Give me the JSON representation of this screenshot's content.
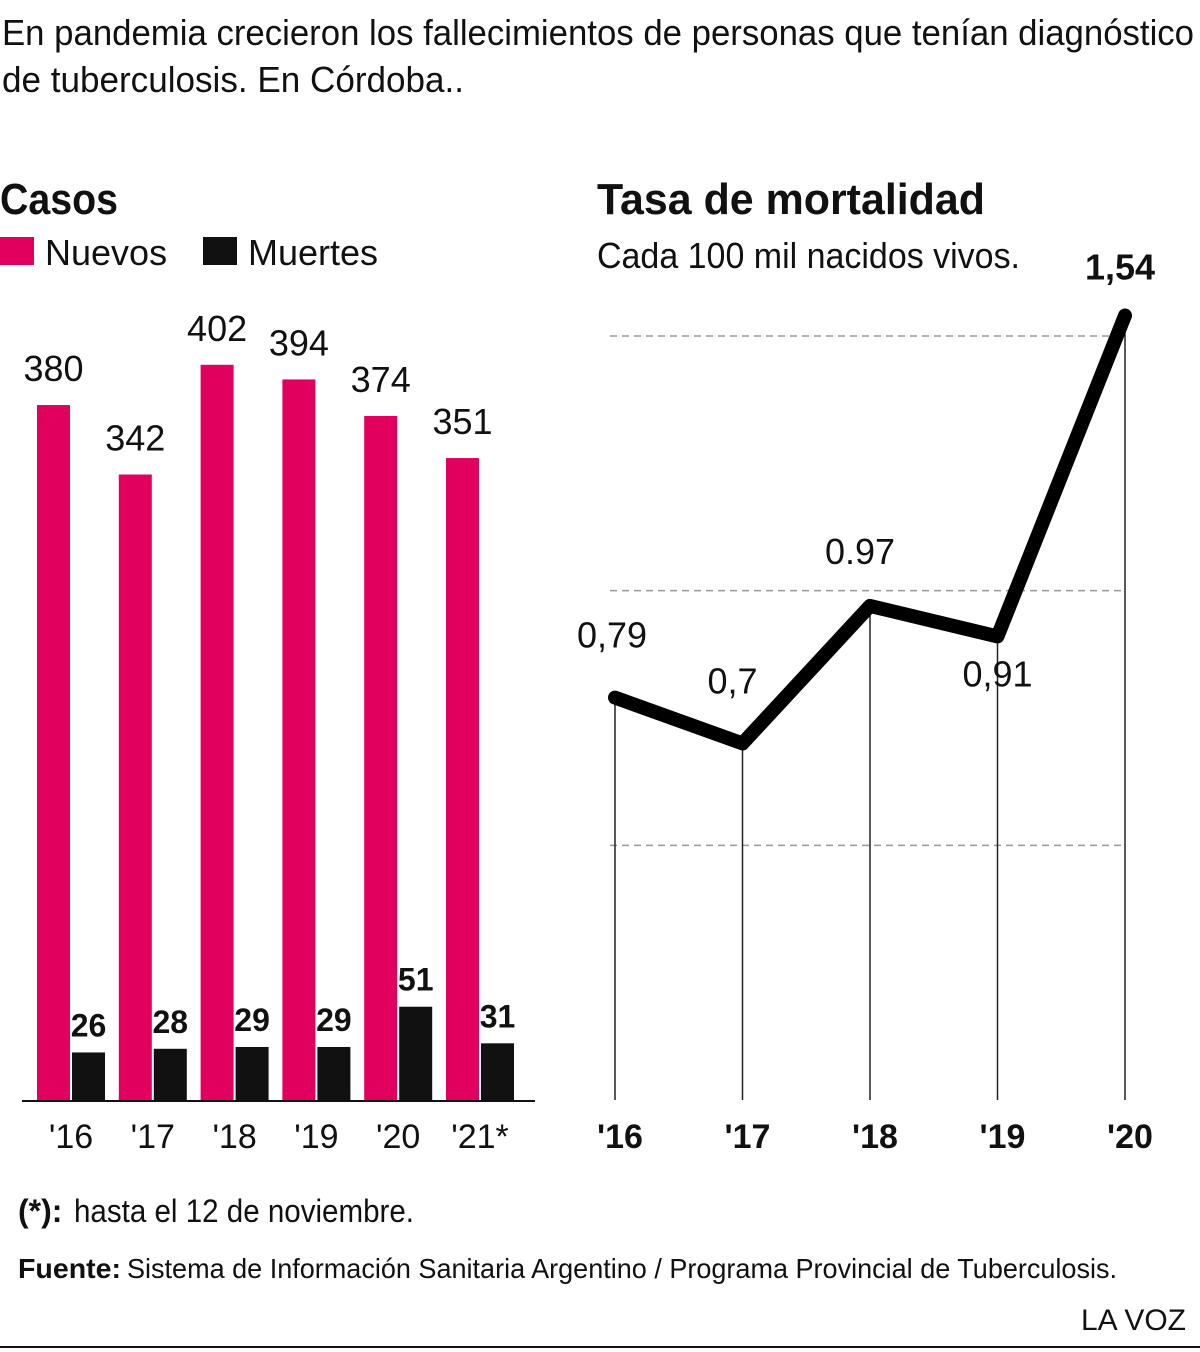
{
  "header": {
    "title": [
      "En pandemia crecieron los fallecimientos de personas que tenían diagnóstico",
      "de tuberculosis. En Córdoba.."
    ]
  },
  "chart_data": [
    {
      "type": "bar",
      "title": "Casos",
      "categories": [
        "'16",
        "'17",
        "'18",
        "'19",
        "'20",
        "'21*"
      ],
      "series": [
        {
          "name": "Nuevos",
          "color": "#e2005f",
          "values": [
            380,
            342,
            402,
            394,
            374,
            351
          ]
        },
        {
          "name": "Muertes",
          "color": "#111111",
          "values": [
            26,
            28,
            29,
            29,
            51,
            31
          ]
        }
      ],
      "ylim": [
        0,
        450
      ]
    },
    {
      "type": "line",
      "title": "Tasa de mortalidad",
      "subtitle": "Cada 100 mil nacidos vivos.",
      "categories": [
        "'16",
        "'17",
        "'18",
        "'19",
        "'20"
      ],
      "values": [
        0.79,
        0.7,
        0.97,
        0.91,
        1.54
      ],
      "value_labels": [
        "0,79",
        "0,7",
        "0.97",
        "0,91",
        "1,54"
      ],
      "color": "#000000",
      "ylim": [
        0,
        1.6
      ],
      "yticks": [
        0.5,
        1,
        1.5
      ],
      "grid": true
    }
  ],
  "footer": {
    "note_label": "(*):",
    "note": "hasta el 12 de noviembre.",
    "source_label": "Fuente:",
    "source": "Sistema de Información Sanitaria Argentino / Programa Provincial de Tuberculosis.",
    "brand": "LA VOZ"
  }
}
